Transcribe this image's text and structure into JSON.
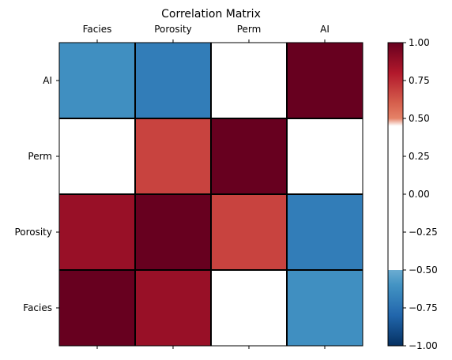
{
  "chart_data": {
    "type": "heatmap",
    "title": "Correlation Matrix",
    "x_labels": [
      "Facies",
      "Porosity",
      "Perm",
      "AI"
    ],
    "y_labels": [
      "AI",
      "Perm",
      "Porosity",
      "Facies"
    ],
    "values": [
      [
        -0.62,
        -0.7,
        0.0,
        1.0
      ],
      [
        0.0,
        0.68,
        1.0,
        0.0
      ],
      [
        0.87,
        1.0,
        0.68,
        -0.7
      ],
      [
        1.0,
        0.87,
        0.0,
        -0.62
      ]
    ],
    "colorbar": {
      "vmin": -1.0,
      "vmax": 1.0,
      "ticks": [
        "1.00",
        "0.75",
        "0.50",
        "0.25",
        "0.00",
        "−0.25",
        "−0.50",
        "−0.75",
        "−1.00"
      ],
      "tick_values": [
        1.0,
        0.75,
        0.5,
        0.25,
        0.0,
        -0.25,
        -0.5,
        -0.75,
        -1.0
      ],
      "masked_range": [
        -0.5,
        0.5
      ],
      "colormap": "RdBu_r"
    }
  }
}
